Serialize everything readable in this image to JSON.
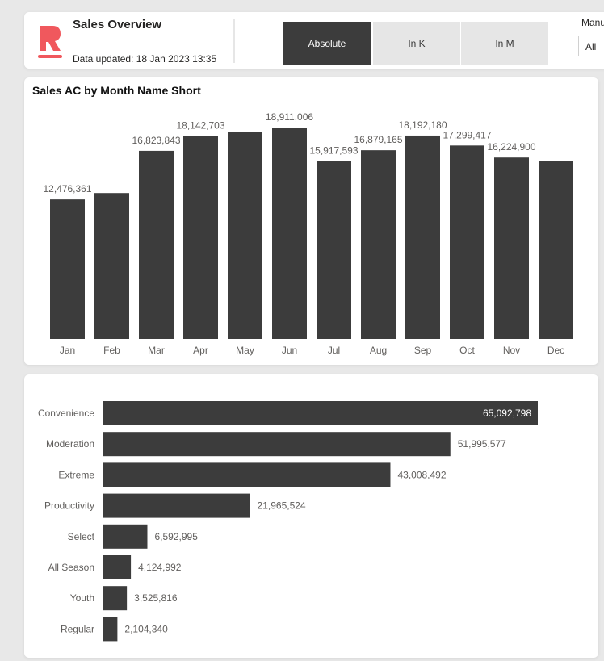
{
  "header": {
    "title": "Sales Overview",
    "updated": "Data updated: 18 Jan 2023 13:35",
    "logo_icon": "brand-r-logo-icon",
    "accent_color": "#f0585d",
    "toggles": [
      {
        "label": "Absolute",
        "active": true
      },
      {
        "label": "In K",
        "active": false
      },
      {
        "label": "In M",
        "active": false
      }
    ],
    "slicer": {
      "label": "Manu",
      "value": "All"
    }
  },
  "chart_data": [
    {
      "type": "bar",
      "title": "Sales AC by Month Name Short",
      "categories": [
        "Jan",
        "Feb",
        "Mar",
        "Apr",
        "May",
        "Jun",
        "Jul",
        "Aug",
        "Sep",
        "Oct",
        "Nov",
        "Dec"
      ],
      "values": [
        12476361,
        13050000,
        16823843,
        18142703,
        18500000,
        18911006,
        15917593,
        16879165,
        18192180,
        17299417,
        16224900,
        15950000
      ],
      "data_labels": [
        "12,476,361",
        "",
        "16,823,843",
        "18,142,703",
        "",
        "18,911,006",
        "15,917,593",
        "16,879,165",
        "18,192,180",
        "17,299,417",
        "16,224,900",
        ""
      ],
      "ylim": [
        0,
        19500000
      ],
      "color": "#3c3c3c"
    },
    {
      "type": "bar",
      "orientation": "horizontal",
      "categories": [
        "Convenience",
        "Moderation",
        "Extreme",
        "Productivity",
        "Select",
        "All Season",
        "Youth",
        "Regular"
      ],
      "values": [
        65092798,
        51995577,
        43008492,
        21965524,
        6592995,
        4124992,
        3525816,
        2104340
      ],
      "data_labels": [
        "65,092,798",
        "51,995,577",
        "43,008,492",
        "21,965,524",
        "6,592,995",
        "4,124,992",
        "3,525,816",
        "2,104,340"
      ],
      "xlim": [
        0,
        65092798
      ],
      "color": "#3c3c3c"
    }
  ]
}
